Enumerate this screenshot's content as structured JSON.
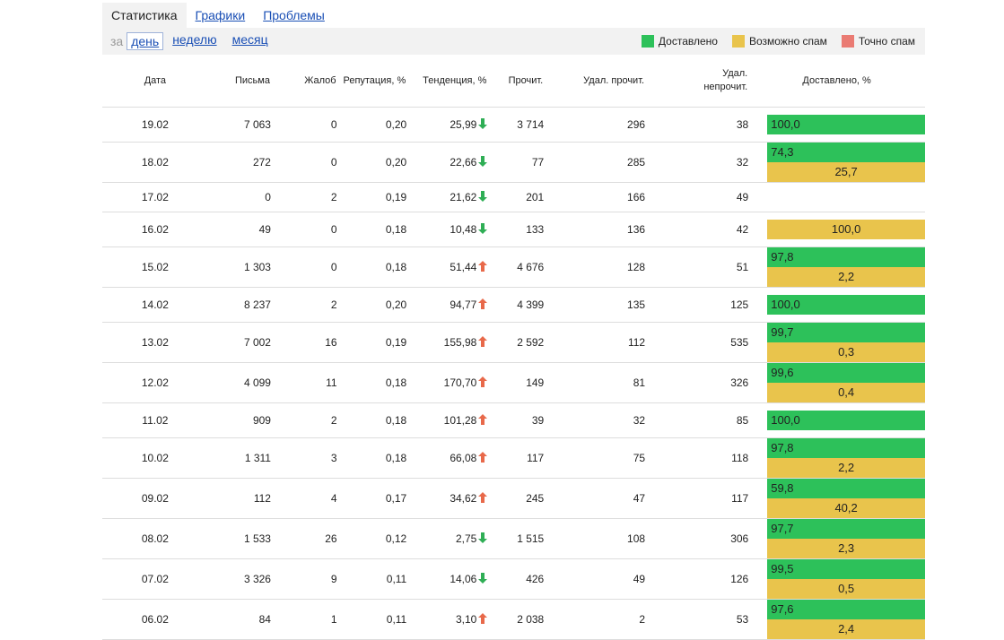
{
  "tabs": [
    "Статистика",
    "Графики",
    "Проблемы"
  ],
  "period": {
    "label": "за",
    "options": [
      "день",
      "неделю",
      "месяц"
    ]
  },
  "legend": [
    {
      "key": "delivered",
      "label": "Доставлено",
      "color": "#2dc15a"
    },
    {
      "key": "maybe_spam",
      "label": "Возможно спам",
      "color": "#e9c44c"
    },
    {
      "key": "spam",
      "label": "Точно спам",
      "color": "#ea7b73"
    }
  ],
  "table": {
    "header": [
      "Дата",
      "Письма",
      "Жалоб",
      "Репутация, %",
      "Тенденция, %",
      "Прочит.",
      "Удал. прочит.",
      "Удал. непрочит.",
      "Доставлено, %"
    ],
    "rows": [
      {
        "cells": [
          "19.02",
          "7 063",
          "0",
          "0,20",
          "25,99",
          "3 714",
          "296",
          "38"
        ],
        "trend": "down",
        "bar": {
          "delivered": {
            "value": 100.0,
            "label": "100,0"
          }
        }
      },
      {
        "cells": [
          "18.02",
          "272",
          "0",
          "0,20",
          "22,66",
          "77",
          "285",
          "32"
        ],
        "trend": "down",
        "bar": {
          "delivered": {
            "value": 74.3,
            "label": "74,3"
          },
          "maybe_spam": {
            "value": 25.7,
            "label": "25,7"
          }
        }
      },
      {
        "cells": [
          "17.02",
          "0",
          "2",
          "0,19",
          "21,62",
          "201",
          "166",
          "49"
        ],
        "trend": "down",
        "bar": {}
      },
      {
        "cells": [
          "16.02",
          "49",
          "0",
          "0,18",
          "10,48",
          "133",
          "136",
          "42"
        ],
        "trend": "down",
        "bar": {
          "maybe_spam": {
            "value": 100.0,
            "label": "100,0"
          }
        }
      },
      {
        "cells": [
          "15.02",
          "1 303",
          "0",
          "0,18",
          "51,44",
          "4 676",
          "128",
          "51"
        ],
        "trend": "up",
        "bar": {
          "delivered": {
            "value": 97.8,
            "label": "97,8"
          },
          "maybe_spam": {
            "value": 2.2,
            "label": "2,2"
          }
        }
      },
      {
        "cells": [
          "14.02",
          "8 237",
          "2",
          "0,20",
          "94,77",
          "4 399",
          "135",
          "125"
        ],
        "trend": "up",
        "bar": {
          "delivered": {
            "value": 100.0,
            "label": "100,0"
          }
        }
      },
      {
        "cells": [
          "13.02",
          "7 002",
          "16",
          "0,19",
          "155,98",
          "2 592",
          "112",
          "535"
        ],
        "trend": "up",
        "bar": {
          "delivered": {
            "value": 99.7,
            "label": "99,7"
          },
          "maybe_spam": {
            "value": 0.3,
            "label": "0,3"
          }
        }
      },
      {
        "cells": [
          "12.02",
          "4 099",
          "11",
          "0,18",
          "170,70",
          "149",
          "81",
          "326"
        ],
        "trend": "up",
        "bar": {
          "delivered": {
            "value": 99.6,
            "label": "99,6"
          },
          "maybe_spam": {
            "value": 0.4,
            "label": "0,4"
          }
        }
      },
      {
        "cells": [
          "11.02",
          "909",
          "2",
          "0,18",
          "101,28",
          "39",
          "32",
          "85"
        ],
        "trend": "up",
        "bar": {
          "delivered": {
            "value": 100.0,
            "label": "100,0"
          }
        }
      },
      {
        "cells": [
          "10.02",
          "1 311",
          "3",
          "0,18",
          "66,08",
          "117",
          "75",
          "118"
        ],
        "trend": "up",
        "bar": {
          "delivered": {
            "value": 97.8,
            "label": "97,8"
          },
          "maybe_spam": {
            "value": 2.2,
            "label": "2,2"
          }
        }
      },
      {
        "cells": [
          "09.02",
          "112",
          "4",
          "0,17",
          "34,62",
          "245",
          "47",
          "117"
        ],
        "trend": "up",
        "bar": {
          "delivered": {
            "value": 59.8,
            "label": "59,8"
          },
          "maybe_spam": {
            "value": 40.2,
            "label": "40,2"
          }
        }
      },
      {
        "cells": [
          "08.02",
          "1 533",
          "26",
          "0,12",
          "2,75",
          "1 515",
          "108",
          "306"
        ],
        "trend": "down",
        "bar": {
          "delivered": {
            "value": 97.7,
            "label": "97,7"
          },
          "maybe_spam": {
            "value": 2.3,
            "label": "2,3"
          }
        }
      },
      {
        "cells": [
          "07.02",
          "3 326",
          "9",
          "0,11",
          "14,06",
          "426",
          "49",
          "126"
        ],
        "trend": "down",
        "bar": {
          "delivered": {
            "value": 99.5,
            "label": "99,5"
          },
          "maybe_spam": {
            "value": 0.5,
            "label": "0,5"
          }
        }
      },
      {
        "cells": [
          "06.02",
          "84",
          "1",
          "0,11",
          "3,10",
          "2 038",
          "2",
          "53"
        ],
        "trend": "up",
        "bar": {
          "delivered": {
            "value": 97.6,
            "label": "97,6"
          },
          "maybe_spam": {
            "value": 2.4,
            "label": "2,4"
          }
        }
      }
    ]
  }
}
